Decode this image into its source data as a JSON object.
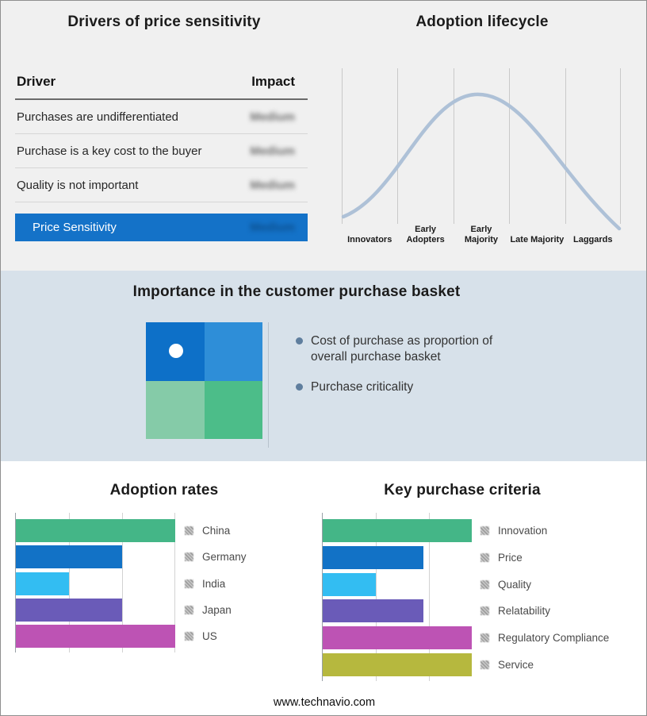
{
  "page": {
    "footer": "www.technavio.com",
    "top_band_color": "#f0f0f0",
    "mid_band_color": "#d7e1ea"
  },
  "drivers_table": {
    "title": "Drivers of price sensitivity",
    "headers": {
      "driver": "Driver",
      "impact": "Impact"
    },
    "impact_blurred": true,
    "rows": [
      {
        "driver": "Purchases are undifferentiated",
        "impact": "Medium"
      },
      {
        "driver": "Purchase is a key cost to the buyer",
        "impact": "Medium"
      },
      {
        "driver": "Quality is not important",
        "impact": "Medium"
      }
    ],
    "summary": {
      "label": "Price Sensitivity",
      "impact": "Medium",
      "color": "#1472c8"
    }
  },
  "basket": {
    "title": "Importance in the customer purchase basket",
    "bullets": [
      "Cost of purchase as proportion of overall purchase basket",
      "Purchase criticality"
    ],
    "quadrant": {
      "top_left": "#0d70c8",
      "top_right": "#2e8ed8",
      "bottom_left": "#85cba8",
      "bottom_right": "#4cbd89",
      "marker_color": "#ffffff"
    }
  },
  "chart_data": [
    {
      "type": "bar",
      "orientation": "horizontal",
      "title": "Adoption rates",
      "categories": [
        "China",
        "Germany",
        "India",
        "Japan",
        "US"
      ],
      "values": [
        3,
        2,
        1,
        2,
        3
      ],
      "colors": [
        "#44b687",
        "#1272c6",
        "#33bdf2",
        "#6a5bb8",
        "#bd53b4"
      ],
      "xlim": [
        0,
        3
      ],
      "axis_labels_shown": false,
      "grid": true,
      "legend_position": "right"
    },
    {
      "type": "bar",
      "orientation": "horizontal",
      "title": "Key purchase criteria",
      "categories": [
        "Innovation",
        "Price",
        "Quality",
        "Relatability",
        "Regulatory Compliance",
        "Service"
      ],
      "values": [
        2.8,
        1.9,
        1,
        1.9,
        2.8,
        2.8
      ],
      "colors": [
        "#44b687",
        "#1272c6",
        "#33bdf2",
        "#6a5bb8",
        "#bd53b4",
        "#b6b83e"
      ],
      "xlim": [
        0,
        3
      ],
      "axis_labels_shown": false,
      "grid": true,
      "legend_position": "right"
    },
    {
      "type": "line",
      "title": "Adoption lifecycle",
      "shape": "bell-curve",
      "x": [
        "Innovators",
        "Early Adopters",
        "Early Majority",
        "Late Majority",
        "Laggards"
      ],
      "peak": "Early Majority",
      "color": "#aec1d7",
      "grid": true
    }
  ]
}
